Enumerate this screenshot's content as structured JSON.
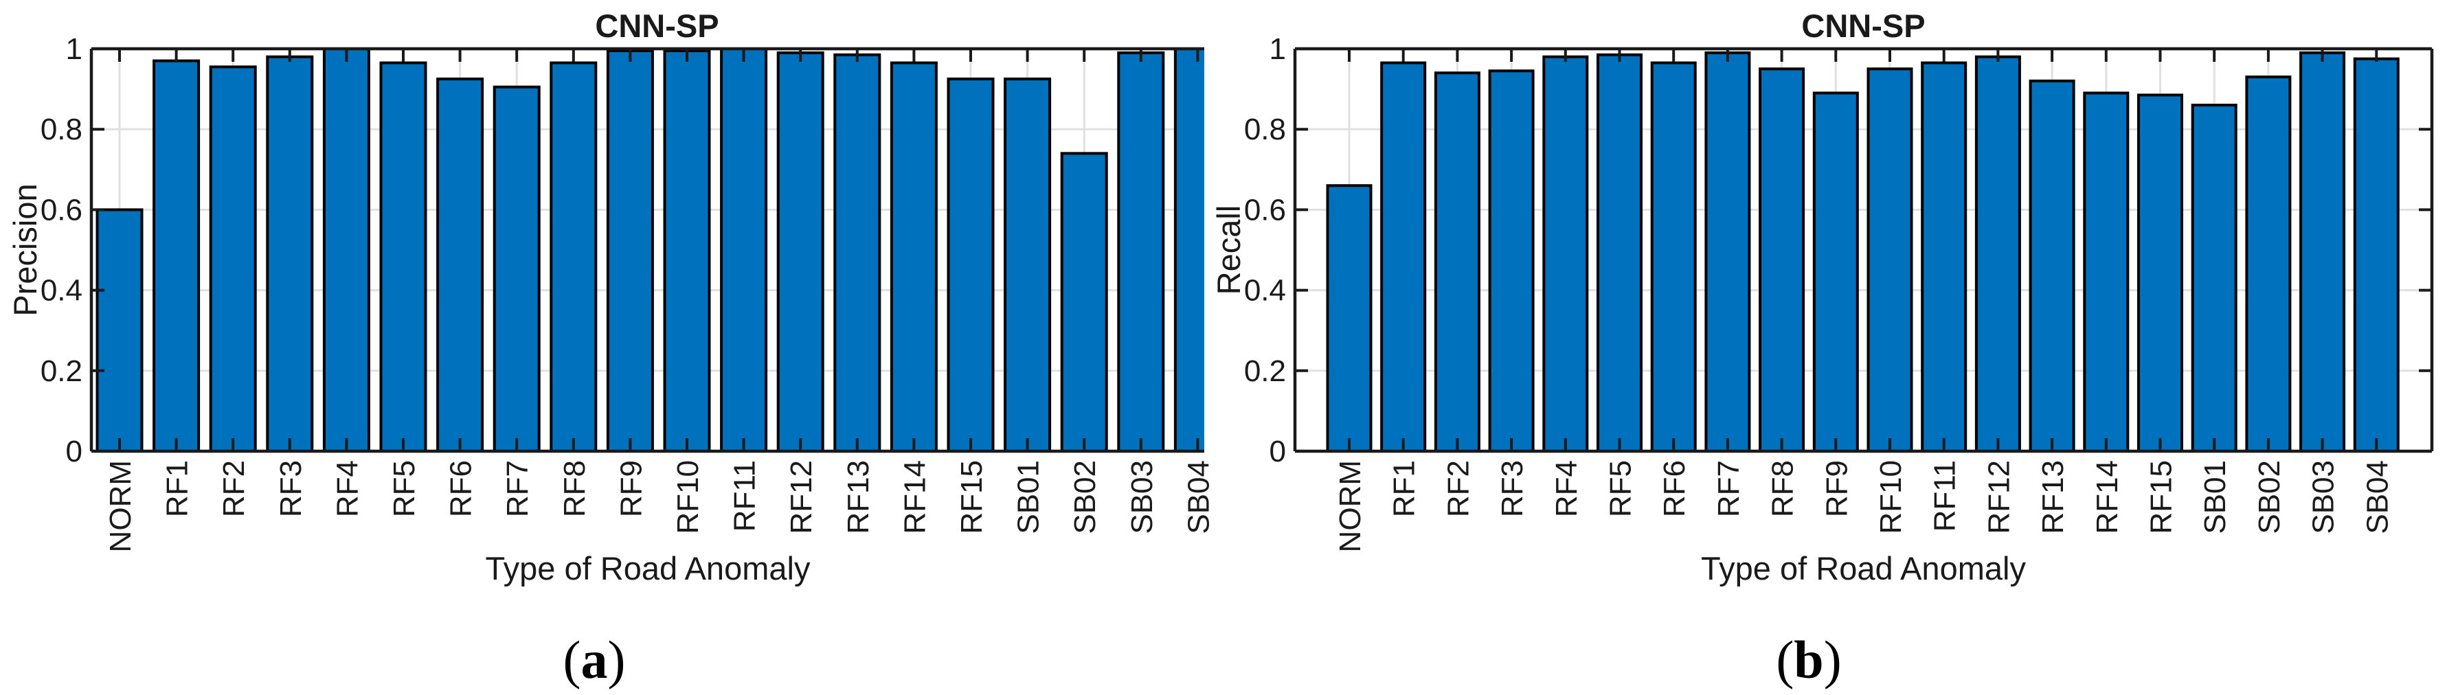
{
  "colors": {
    "bar_fill": "#0072BD",
    "bar_edge": "#000000",
    "axis": "#1a1a1a",
    "grid": "#e0e0e0",
    "text": "#1a1a1a",
    "background": "#ffffff"
  },
  "chart_data": [
    {
      "type": "bar",
      "panel": "a",
      "title": "CNN-SP",
      "xlabel": "Type of Road Anomaly",
      "ylabel": "Precision",
      "categories": [
        "NORM",
        "RF1",
        "RF2",
        "RF3",
        "RF4",
        "RF5",
        "RF6",
        "RF7",
        "RF8",
        "RF9",
        "RF10",
        "RF11",
        "RF12",
        "RF13",
        "RF14",
        "RF15",
        "SB01",
        "SB02",
        "SB03",
        "SB04"
      ],
      "values": [
        0.6,
        0.97,
        0.955,
        0.98,
        1.0,
        0.965,
        0.925,
        0.905,
        0.965,
        0.995,
        0.995,
        1.0,
        0.99,
        0.985,
        0.965,
        0.925,
        0.925,
        0.74,
        0.99,
        1.0
      ],
      "ylim": [
        0,
        1
      ],
      "yticks": [
        0,
        0.2,
        0.4,
        0.6,
        0.8,
        1
      ],
      "ytick_labels": [
        "0",
        "0.2",
        "0.4",
        "0.6",
        "0.8",
        "1"
      ],
      "grid": "on",
      "legend": "none",
      "caption": {
        "open": "(",
        "letter": "a",
        "close": ")"
      }
    },
    {
      "type": "bar",
      "panel": "b",
      "title": "CNN-SP",
      "xlabel": "Type of Road Anomaly",
      "ylabel": "Recall",
      "categories": [
        "NORM",
        "RF1",
        "RF2",
        "RF3",
        "RF4",
        "RF5",
        "RF6",
        "RF7",
        "RF8",
        "RF9",
        "RF10",
        "RF11",
        "RF12",
        "RF13",
        "RF14",
        "RF15",
        "SB01",
        "SB02",
        "SB03",
        "SB04"
      ],
      "values": [
        0.66,
        0.965,
        0.94,
        0.945,
        0.98,
        0.985,
        0.965,
        0.99,
        0.95,
        0.89,
        0.95,
        0.965,
        0.98,
        0.92,
        0.89,
        0.885,
        0.86,
        0.93,
        0.99,
        0.975
      ],
      "ylim": [
        0,
        1
      ],
      "yticks": [
        0,
        0.2,
        0.4,
        0.6,
        0.8,
        1
      ],
      "ytick_labels": [
        "0",
        "0.2",
        "0.4",
        "0.6",
        "0.8",
        "1"
      ],
      "grid": "on",
      "legend": "none",
      "caption": {
        "open": "(",
        "letter": "b",
        "close": ")"
      }
    }
  ]
}
